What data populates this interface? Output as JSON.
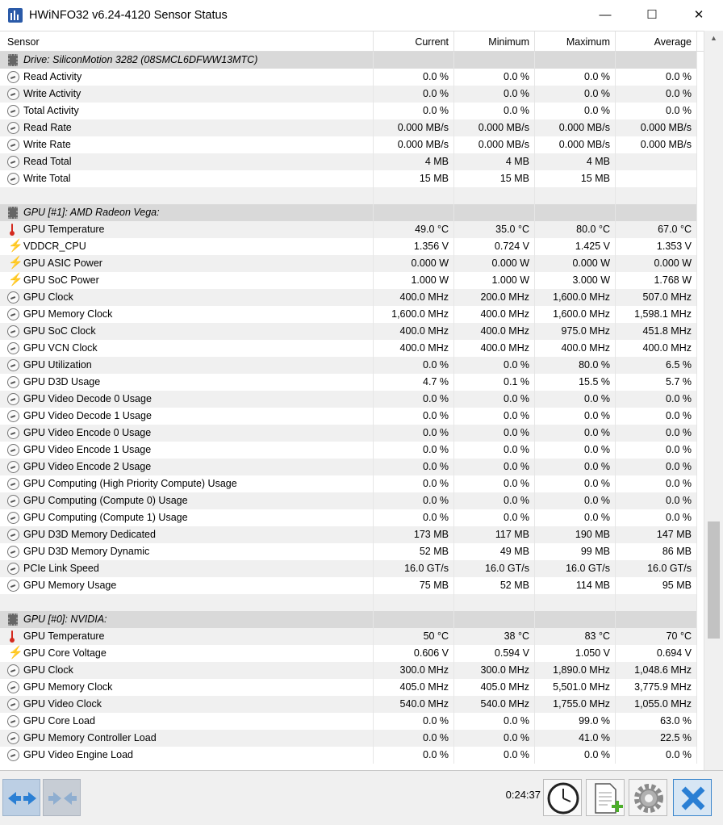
{
  "window": {
    "title": "HWiNFO32 v6.24-4120 Sensor Status",
    "minimize": "—",
    "maximize": "☐",
    "close": "✕"
  },
  "columns": {
    "sensor": "Sensor",
    "current": "Current",
    "minimum": "Minimum",
    "maximum": "Maximum",
    "average": "Average"
  },
  "rows": [
    {
      "type": "group",
      "icon": "chip-icon",
      "name": "Drive: SiliconMotion 3282 (08SMCL6DFWW13MTC)"
    },
    {
      "type": "sensor",
      "icon": "gauge-icon",
      "name": "Read Activity",
      "current": "0.0 %",
      "min": "0.0 %",
      "max": "0.0 %",
      "avg": "0.0 %"
    },
    {
      "type": "sensor",
      "icon": "gauge-icon",
      "name": "Write Activity",
      "current": "0.0 %",
      "min": "0.0 %",
      "max": "0.0 %",
      "avg": "0.0 %"
    },
    {
      "type": "sensor",
      "icon": "gauge-icon",
      "name": "Total Activity",
      "current": "0.0 %",
      "min": "0.0 %",
      "max": "0.0 %",
      "avg": "0.0 %"
    },
    {
      "type": "sensor",
      "icon": "gauge-icon",
      "name": "Read Rate",
      "current": "0.000 MB/s",
      "min": "0.000 MB/s",
      "max": "0.000 MB/s",
      "avg": "0.000 MB/s"
    },
    {
      "type": "sensor",
      "icon": "gauge-icon",
      "name": "Write Rate",
      "current": "0.000 MB/s",
      "min": "0.000 MB/s",
      "max": "0.000 MB/s",
      "avg": "0.000 MB/s"
    },
    {
      "type": "sensor",
      "icon": "gauge-icon",
      "name": "Read Total",
      "current": "4 MB",
      "min": "4 MB",
      "max": "4 MB",
      "avg": ""
    },
    {
      "type": "sensor",
      "icon": "gauge-icon",
      "name": "Write Total",
      "current": "15 MB",
      "min": "15 MB",
      "max": "15 MB",
      "avg": ""
    },
    {
      "type": "blank"
    },
    {
      "type": "group",
      "icon": "chip-icon",
      "name": "GPU [#1]: AMD Radeon Vega:"
    },
    {
      "type": "sensor",
      "icon": "thermometer-icon",
      "name": "GPU Temperature",
      "current": "49.0 °C",
      "min": "35.0 °C",
      "max": "80.0 °C",
      "avg": "67.0 °C"
    },
    {
      "type": "sensor",
      "icon": "lightning-icon",
      "name": "VDDCR_CPU",
      "current": "1.356 V",
      "min": "0.724 V",
      "max": "1.425 V",
      "avg": "1.353 V"
    },
    {
      "type": "sensor",
      "icon": "lightning-icon",
      "name": "GPU ASIC Power",
      "current": "0.000 W",
      "min": "0.000 W",
      "max": "0.000 W",
      "avg": "0.000 W"
    },
    {
      "type": "sensor",
      "icon": "lightning-icon",
      "name": "GPU SoC Power",
      "current": "1.000 W",
      "min": "1.000 W",
      "max": "3.000 W",
      "avg": "1.768 W"
    },
    {
      "type": "sensor",
      "icon": "gauge-icon",
      "name": "GPU Clock",
      "current": "400.0 MHz",
      "min": "200.0 MHz",
      "max": "1,600.0 MHz",
      "avg": "507.0 MHz"
    },
    {
      "type": "sensor",
      "icon": "gauge-icon",
      "name": "GPU Memory Clock",
      "current": "1,600.0 MHz",
      "min": "400.0 MHz",
      "max": "1,600.0 MHz",
      "avg": "1,598.1 MHz"
    },
    {
      "type": "sensor",
      "icon": "gauge-icon",
      "name": "GPU SoC Clock",
      "current": "400.0 MHz",
      "min": "400.0 MHz",
      "max": "975.0 MHz",
      "avg": "451.8 MHz"
    },
    {
      "type": "sensor",
      "icon": "gauge-icon",
      "name": "GPU VCN Clock",
      "current": "400.0 MHz",
      "min": "400.0 MHz",
      "max": "400.0 MHz",
      "avg": "400.0 MHz"
    },
    {
      "type": "sensor",
      "icon": "gauge-icon",
      "name": "GPU Utilization",
      "current": "0.0 %",
      "min": "0.0 %",
      "max": "80.0 %",
      "avg": "6.5 %"
    },
    {
      "type": "sensor",
      "icon": "gauge-icon",
      "name": "GPU D3D Usage",
      "current": "4.7 %",
      "min": "0.1 %",
      "max": "15.5 %",
      "avg": "5.7 %"
    },
    {
      "type": "sensor",
      "icon": "gauge-icon",
      "name": "GPU Video Decode 0 Usage",
      "current": "0.0 %",
      "min": "0.0 %",
      "max": "0.0 %",
      "avg": "0.0 %"
    },
    {
      "type": "sensor",
      "icon": "gauge-icon",
      "name": "GPU Video Decode 1 Usage",
      "current": "0.0 %",
      "min": "0.0 %",
      "max": "0.0 %",
      "avg": "0.0 %"
    },
    {
      "type": "sensor",
      "icon": "gauge-icon",
      "name": "GPU Video Encode 0 Usage",
      "current": "0.0 %",
      "min": "0.0 %",
      "max": "0.0 %",
      "avg": "0.0 %"
    },
    {
      "type": "sensor",
      "icon": "gauge-icon",
      "name": "GPU Video Encode 1 Usage",
      "current": "0.0 %",
      "min": "0.0 %",
      "max": "0.0 %",
      "avg": "0.0 %"
    },
    {
      "type": "sensor",
      "icon": "gauge-icon",
      "name": "GPU Video Encode 2 Usage",
      "current": "0.0 %",
      "min": "0.0 %",
      "max": "0.0 %",
      "avg": "0.0 %"
    },
    {
      "type": "sensor",
      "icon": "gauge-icon",
      "name": "GPU Computing (High Priority Compute) Usage",
      "current": "0.0 %",
      "min": "0.0 %",
      "max": "0.0 %",
      "avg": "0.0 %"
    },
    {
      "type": "sensor",
      "icon": "gauge-icon",
      "name": "GPU Computing (Compute 0) Usage",
      "current": "0.0 %",
      "min": "0.0 %",
      "max": "0.0 %",
      "avg": "0.0 %"
    },
    {
      "type": "sensor",
      "icon": "gauge-icon",
      "name": "GPU Computing (Compute 1) Usage",
      "current": "0.0 %",
      "min": "0.0 %",
      "max": "0.0 %",
      "avg": "0.0 %"
    },
    {
      "type": "sensor",
      "icon": "gauge-icon",
      "name": "GPU D3D Memory Dedicated",
      "current": "173 MB",
      "min": "117 MB",
      "max": "190 MB",
      "avg": "147 MB"
    },
    {
      "type": "sensor",
      "icon": "gauge-icon",
      "name": "GPU D3D Memory Dynamic",
      "current": "52 MB",
      "min": "49 MB",
      "max": "99 MB",
      "avg": "86 MB"
    },
    {
      "type": "sensor",
      "icon": "gauge-icon",
      "name": "PCIe Link Speed",
      "current": "16.0 GT/s",
      "min": "16.0 GT/s",
      "max": "16.0 GT/s",
      "avg": "16.0 GT/s"
    },
    {
      "type": "sensor",
      "icon": "gauge-icon",
      "name": "GPU Memory Usage",
      "current": "75 MB",
      "min": "52 MB",
      "max": "114 MB",
      "avg": "95 MB"
    },
    {
      "type": "blank"
    },
    {
      "type": "group",
      "icon": "chip-icon",
      "name": "GPU [#0]: NVIDIA:"
    },
    {
      "type": "sensor",
      "icon": "thermometer-icon",
      "name": "GPU Temperature",
      "current": "50 °C",
      "min": "38 °C",
      "max": "83 °C",
      "avg": "70 °C"
    },
    {
      "type": "sensor",
      "icon": "lightning-icon",
      "name": "GPU Core Voltage",
      "current": "0.606 V",
      "min": "0.594 V",
      "max": "1.050 V",
      "avg": "0.694 V"
    },
    {
      "type": "sensor",
      "icon": "gauge-icon",
      "name": "GPU Clock",
      "current": "300.0 MHz",
      "min": "300.0 MHz",
      "max": "1,890.0 MHz",
      "avg": "1,048.6 MHz"
    },
    {
      "type": "sensor",
      "icon": "gauge-icon",
      "name": "GPU Memory Clock",
      "current": "405.0 MHz",
      "min": "405.0 MHz",
      "max": "5,501.0 MHz",
      "avg": "3,775.9 MHz"
    },
    {
      "type": "sensor",
      "icon": "gauge-icon",
      "name": "GPU Video Clock",
      "current": "540.0 MHz",
      "min": "540.0 MHz",
      "max": "1,755.0 MHz",
      "avg": "1,055.0 MHz"
    },
    {
      "type": "sensor",
      "icon": "gauge-icon",
      "name": "GPU Core Load",
      "current": "0.0 %",
      "min": "0.0 %",
      "max": "99.0 %",
      "avg": "63.0 %"
    },
    {
      "type": "sensor",
      "icon": "gauge-icon",
      "name": "GPU Memory Controller Load",
      "current": "0.0 %",
      "min": "0.0 %",
      "max": "41.0 %",
      "avg": "22.5 %"
    },
    {
      "type": "sensor",
      "icon": "gauge-icon",
      "name": "GPU Video Engine Load",
      "current": "0.0 %",
      "min": "0.0 %",
      "max": "0.0 %",
      "avg": "0.0 %"
    }
  ],
  "toolbar": {
    "uptime": "0:24:37",
    "buttons": [
      {
        "name": "expand-arrows-icon"
      },
      {
        "name": "collapse-arrows-icon"
      },
      {
        "name": "clock-icon"
      },
      {
        "name": "report-add-icon"
      },
      {
        "name": "settings-gear-icon"
      },
      {
        "name": "close-x-icon"
      }
    ]
  },
  "colors": {
    "accent_blue": "#2a7fd4",
    "group_row_bg": "#d9d9d9",
    "alt_row_bg": "#f0f0f0",
    "volt_yellow": "#f1b600",
    "temp_red": "#d42a1f"
  }
}
